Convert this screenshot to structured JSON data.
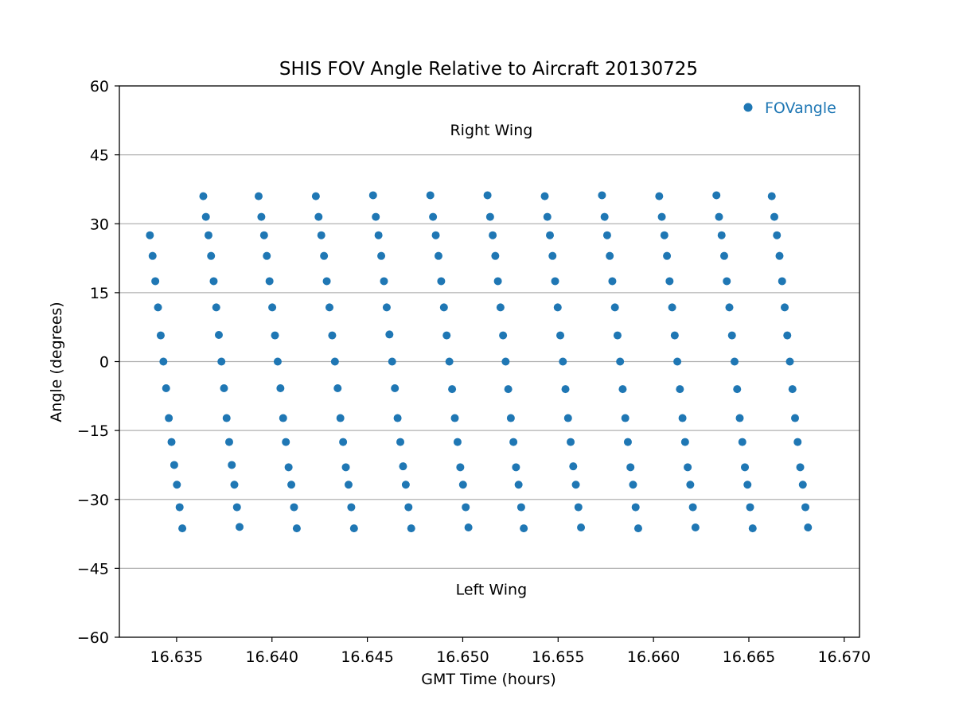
{
  "chart_data": {
    "type": "scatter",
    "title": "SHIS FOV Angle Relative to Aircraft 20130725",
    "xlabel": "GMT Time (hours)",
    "ylabel": "Angle (degrees)",
    "xlim": [
      16.632,
      16.6708
    ],
    "ylim": [
      -60,
      60
    ],
    "xticks": [
      16.635,
      16.64,
      16.645,
      16.65,
      16.655,
      16.66,
      16.665,
      16.67
    ],
    "xtick_labels": [
      "16.635",
      "16.640",
      "16.645",
      "16.650",
      "16.655",
      "16.660",
      "16.665",
      "16.670"
    ],
    "yticks": [
      60,
      45,
      30,
      15,
      0,
      -15,
      -30,
      -45,
      -60
    ],
    "ytick_labels": [
      "60",
      "45",
      "30",
      "15",
      "0",
      "−15",
      "−30",
      "−45",
      "−60"
    ],
    "grid": "horizontal",
    "legend": {
      "position": "top-right",
      "label": "FOVangle"
    },
    "annotations": [
      {
        "text": "Right Wing",
        "x": 16.6515,
        "y": 50.5
      },
      {
        "text": "Left Wing",
        "x": 16.6515,
        "y": -49.5
      }
    ],
    "series": [
      {
        "name": "FOVangle",
        "color": "#1f77b4",
        "sweeps": [
          {
            "x_top": 16.6336,
            "x_bottom": 16.6353,
            "angles": [
              27.5,
              23.0,
              17.5,
              11.8,
              5.7,
              0.0,
              -5.8,
              -12.3,
              -17.5,
              -22.5,
              -26.8,
              -31.7,
              -36.3
            ]
          },
          {
            "x_top": 16.6364,
            "x_bottom": 16.6383,
            "angles": [
              36.0,
              31.5,
              27.5,
              23.0,
              17.5,
              11.8,
              5.8,
              0.0,
              -5.8,
              -12.3,
              -17.5,
              -22.5,
              -26.8,
              -31.7,
              -36.0
            ]
          },
          {
            "x_top": 16.6393,
            "x_bottom": 16.6413,
            "angles": [
              36.0,
              31.5,
              27.5,
              23.0,
              17.5,
              11.8,
              5.7,
              0.0,
              -5.8,
              -12.3,
              -17.5,
              -23.0,
              -26.8,
              -31.7,
              -36.3
            ]
          },
          {
            "x_top": 16.6423,
            "x_bottom": 16.6443,
            "angles": [
              36.0,
              31.5,
              27.5,
              23.0,
              17.5,
              11.8,
              5.7,
              0.0,
              -5.8,
              -12.3,
              -17.5,
              -23.0,
              -26.8,
              -31.7,
              -36.3
            ]
          },
          {
            "x_top": 16.6453,
            "x_bottom": 16.6473,
            "angles": [
              36.2,
              31.5,
              27.5,
              23.0,
              17.5,
              11.8,
              5.9,
              0.0,
              -5.8,
              -12.3,
              -17.5,
              -22.8,
              -26.8,
              -31.7,
              -36.3
            ]
          },
          {
            "x_top": 16.6483,
            "x_bottom": 16.6503,
            "angles": [
              36.2,
              31.5,
              27.5,
              23.0,
              17.5,
              11.8,
              5.7,
              0.0,
              -6.0,
              -12.3,
              -17.5,
              -23.0,
              -26.8,
              -31.7,
              -36.1
            ]
          },
          {
            "x_top": 16.6513,
            "x_bottom": 16.6532,
            "angles": [
              36.2,
              31.5,
              27.5,
              23.0,
              17.5,
              11.8,
              5.7,
              0.0,
              -6.0,
              -12.3,
              -17.5,
              -23.0,
              -26.8,
              -31.7,
              -36.3
            ]
          },
          {
            "x_top": 16.6543,
            "x_bottom": 16.6562,
            "angles": [
              36.0,
              31.5,
              27.5,
              23.0,
              17.5,
              11.8,
              5.7,
              0.0,
              -6.0,
              -12.3,
              -17.5,
              -22.8,
              -26.8,
              -31.7,
              -36.1
            ]
          },
          {
            "x_top": 16.6573,
            "x_bottom": 16.6592,
            "angles": [
              36.2,
              31.5,
              27.5,
              23.0,
              17.5,
              11.8,
              5.7,
              0.0,
              -6.0,
              -12.3,
              -17.5,
              -23.0,
              -26.8,
              -31.7,
              -36.3
            ]
          },
          {
            "x_top": 16.6603,
            "x_bottom": 16.6622,
            "angles": [
              36.0,
              31.5,
              27.5,
              23.0,
              17.5,
              11.8,
              5.7,
              0.0,
              -6.0,
              -12.3,
              -17.5,
              -23.0,
              -26.8,
              -31.7,
              -36.1
            ]
          },
          {
            "x_top": 16.6633,
            "x_bottom": 16.6652,
            "angles": [
              36.2,
              31.5,
              27.5,
              23.0,
              17.5,
              11.8,
              5.7,
              0.0,
              -6.0,
              -12.3,
              -17.5,
              -23.0,
              -26.8,
              -31.7,
              -36.3
            ]
          },
          {
            "x_top": 16.6662,
            "x_bottom": 16.6681,
            "angles": [
              36.0,
              31.5,
              27.5,
              23.0,
              17.5,
              11.8,
              5.7,
              0.0,
              -6.0,
              -12.3,
              -17.5,
              -23.0,
              -26.8,
              -31.7,
              -36.1
            ]
          }
        ]
      }
    ]
  }
}
